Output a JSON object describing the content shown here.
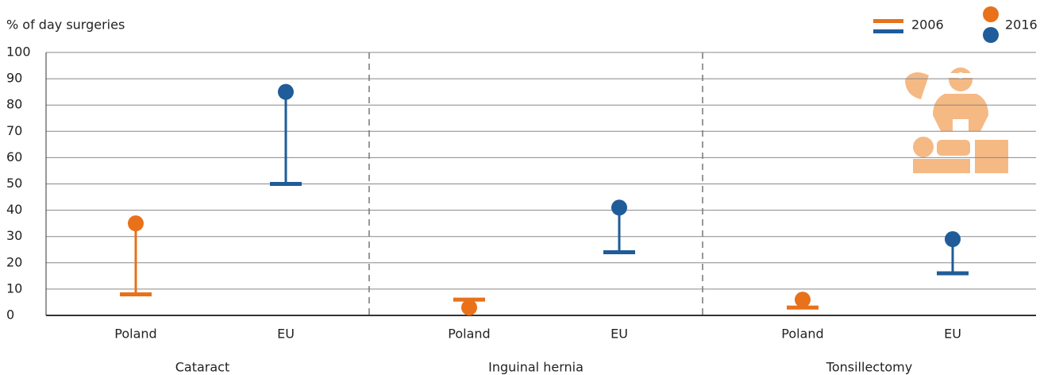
{
  "chart_data": {
    "type": "dumbbell",
    "y_label": "% of day surgeries",
    "groups": [
      "Cataract",
      "Inguinal hernia",
      "Tonsillectomy"
    ],
    "categories": [
      "Poland",
      "EU",
      "Poland",
      "EU",
      "Poland",
      "EU"
    ],
    "colors": [
      "#e8711a",
      "#1f5c99",
      "#e8711a",
      "#1f5c99",
      "#e8711a",
      "#1f5c99"
    ],
    "series": [
      {
        "name": "2006",
        "values": [
          8,
          50,
          6,
          24,
          3,
          16
        ]
      },
      {
        "name": "2016",
        "values": [
          35,
          85,
          3,
          41,
          6,
          29
        ]
      }
    ],
    "ylim": [
      0,
      100
    ],
    "yticks": [
      0,
      10,
      20,
      30,
      40,
      50,
      60,
      70,
      80,
      90,
      100
    ],
    "grid": true
  }
}
